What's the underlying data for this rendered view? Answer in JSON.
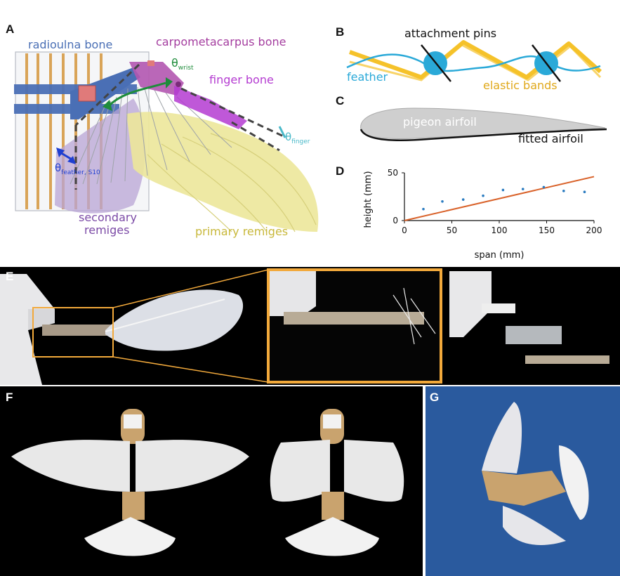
{
  "panels": {
    "a": {
      "letter": "A",
      "radioulna": "radioulna bone",
      "carpometacarpus": "carpometacarpus bone",
      "finger": "finger bone",
      "theta": "θ",
      "wrist_sub": "wrist",
      "finger_sub": "finger",
      "feather_sub": "feather, S10",
      "secondary_1": "secondary",
      "secondary_2": "remiges",
      "primary": "primary remiges"
    },
    "b": {
      "letter": "B",
      "pins": "attachment pins",
      "feather": "feather",
      "bands": "elastic bands"
    },
    "c": {
      "letter": "C",
      "pigeon": "pigeon airfoil",
      "fitted": "fitted airfoil"
    },
    "d": {
      "letter": "D"
    },
    "e": {
      "letter": "E"
    },
    "f": {
      "letter": "F"
    },
    "g": {
      "letter": "G"
    }
  },
  "colors": {
    "radioulna": "#4a6fb5",
    "carpometacarpus": "#a43d9f",
    "finger": "#b43bd1",
    "wrist": "#1e8c3a",
    "theta_finger": "#49b9c9",
    "theta_feather": "#1f3fd1",
    "secondary": "#7b4aa6",
    "primary": "#c8c24a",
    "feather_line": "#2aa9d8",
    "bands": "#f5c22a",
    "fit_line": "#d9622a",
    "dots": "#2a7bc0",
    "zoom_box": "#f2a93b"
  },
  "chart_data": {
    "type": "scatter",
    "xlabel": "span (mm)",
    "ylabel": "height (mm)",
    "xlim": [
      0,
      200
    ],
    "ylim": [
      0,
      50
    ],
    "xticks": [
      "0",
      "50",
      "100",
      "150",
      "200"
    ],
    "yticks": [
      "0",
      "50"
    ],
    "series": [
      {
        "type": "scatter",
        "x": [
          20,
          40,
          62,
          83,
          104,
          125,
          147,
          168,
          190
        ],
        "y": [
          12,
          20,
          22,
          26,
          32,
          33,
          35,
          31,
          30
        ]
      },
      {
        "type": "line",
        "x": [
          0,
          200
        ],
        "y": [
          0,
          46
        ]
      }
    ]
  }
}
